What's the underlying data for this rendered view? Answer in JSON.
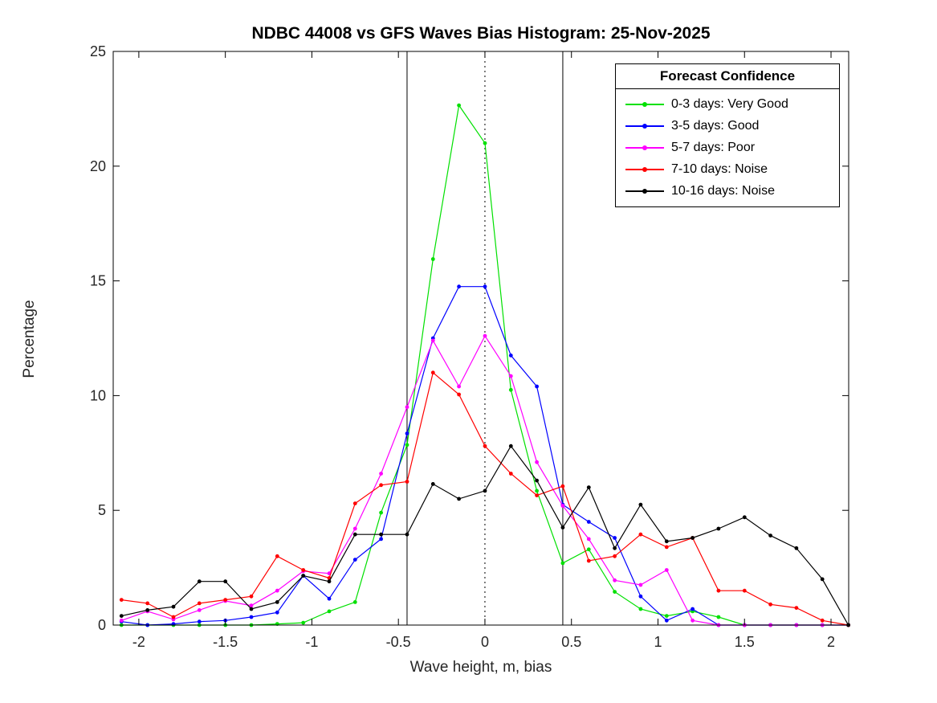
{
  "title": "NDBC 44008 vs GFS Waves Bias Histogram: 25-Nov-2025",
  "chart_data": {
    "type": "line",
    "title": "NDBC 44008 vs GFS Waves Bias Histogram: 25-Nov-2025",
    "xlabel": "Wave height, m, bias",
    "ylabel": "Percentage",
    "xlim": [
      -2.148,
      2.102
    ],
    "ylim": [
      0,
      25
    ],
    "grid": false,
    "x_ticks": [
      -2,
      -1.5,
      -1,
      -0.5,
      0,
      0.5,
      1,
      1.5,
      2
    ],
    "x_tick_labels": [
      "-2",
      "-1.5",
      "-1",
      "-0.5",
      "0",
      "0.5",
      "1",
      "1.5",
      "2"
    ],
    "y_ticks": [
      0,
      5,
      10,
      15,
      20,
      25
    ],
    "y_tick_labels": [
      "0",
      "5",
      "10",
      "15",
      "20",
      "25"
    ],
    "x": [
      -2.1,
      -1.95,
      -1.8,
      -1.65,
      -1.5,
      -1.35,
      -1.2,
      -1.05,
      -0.9,
      -0.75,
      -0.6,
      -0.45,
      -0.3,
      -0.15,
      0,
      0.15,
      0.3,
      0.45,
      0.6,
      0.75,
      0.9,
      1.05,
      1.2,
      1.35,
      1.5,
      1.65,
      1.8,
      1.95,
      2.1
    ],
    "series": [
      {
        "name": "0-3 days: Very Good",
        "color": "#00e000",
        "values": [
          0,
          0,
          0,
          0,
          0,
          0,
          0.05,
          0.1,
          0.6,
          1.0,
          4.9,
          7.85,
          15.95,
          22.65,
          21.0,
          10.25,
          5.85,
          2.7,
          3.3,
          1.45,
          0.7,
          0.4,
          0.6,
          0.35,
          0,
          0,
          0,
          0,
          0
        ]
      },
      {
        "name": "3-5 days: Good",
        "color": "#0000ff",
        "values": [
          0.15,
          0,
          0.05,
          0.15,
          0.2,
          0.35,
          0.55,
          2.15,
          1.15,
          2.85,
          3.75,
          8.35,
          12.5,
          14.75,
          14.75,
          11.75,
          10.4,
          5.25,
          4.5,
          3.8,
          1.25,
          0.2,
          0.7,
          0,
          0,
          0,
          0,
          0,
          0
        ]
      },
      {
        "name": "5-7 days: Poor",
        "color": "#ff00ff",
        "values": [
          0.2,
          0.6,
          0.25,
          0.65,
          1.05,
          0.85,
          1.5,
          2.35,
          2.25,
          4.2,
          6.6,
          9.5,
          12.4,
          10.4,
          12.6,
          10.85,
          7.1,
          5.2,
          3.75,
          1.95,
          1.75,
          2.4,
          0.2,
          0,
          0,
          0,
          0,
          0,
          0
        ]
      },
      {
        "name": "7-10 days: Noise",
        "color": "#ff0000",
        "values": [
          1.1,
          0.95,
          0.35,
          0.95,
          1.1,
          1.25,
          3.0,
          2.4,
          2.05,
          5.3,
          6.1,
          6.25,
          11.0,
          10.05,
          7.8,
          6.6,
          5.65,
          6.05,
          2.8,
          3.0,
          3.95,
          3.4,
          3.8,
          1.5,
          1.5,
          0.9,
          0.75,
          0.2,
          0
        ]
      },
      {
        "name": "10-16 days: Noise",
        "color": "#000000",
        "values": [
          0.4,
          0.65,
          0.8,
          1.9,
          1.9,
          0.7,
          1.0,
          2.15,
          1.9,
          3.95,
          3.95,
          3.95,
          6.15,
          5.5,
          5.85,
          7.8,
          6.3,
          4.25,
          6.0,
          3.35,
          5.25,
          3.65,
          3.8,
          4.2,
          4.7,
          3.9,
          3.35,
          2.0,
          0
        ]
      }
    ],
    "reference_lines": [
      {
        "x": -0.45,
        "style": "solid",
        "color": "#000000"
      },
      {
        "x": 0,
        "style": "dotted",
        "color": "#000000"
      },
      {
        "x": 0.45,
        "style": "solid",
        "color": "#000000"
      }
    ],
    "legend": {
      "title": "Forecast Confidence",
      "position": "top-right"
    }
  }
}
